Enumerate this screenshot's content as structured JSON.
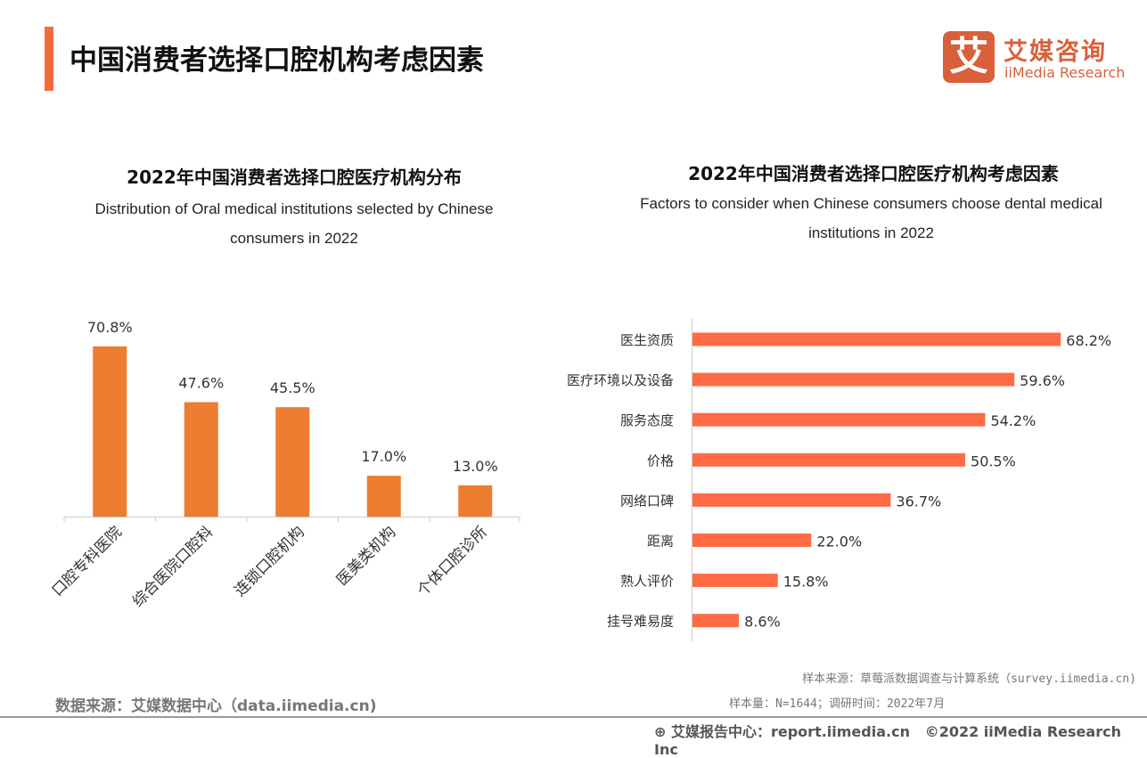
{
  "header": {
    "title": "中国消费者选择口腔机构考虑因素",
    "logo_cn": "艾媒咨询",
    "logo_en": "iiMedia Research",
    "logo_glyph": "艾"
  },
  "chart_data": [
    {
      "type": "bar",
      "title": "2022年中国消费者选择口腔医疗机构分布",
      "subtitle": "Distribution of Oral medical institutions selected by Chinese consumers in 2022",
      "categories": [
        "口腔专科医院",
        "综合医院口腔科",
        "连锁口腔机构",
        "医美类机构",
        "个体口腔诊所"
      ],
      "values": [
        70.8,
        47.6,
        45.5,
        17.0,
        13.0
      ],
      "labels": [
        "70.8%",
        "47.6%",
        "45.5%",
        "17.0%",
        "13.0%"
      ],
      "color": "#ED7D31",
      "grid": false
    },
    {
      "type": "bar",
      "orientation": "horizontal",
      "title": "2022年中国消费者选择口腔医疗机构考虑因素",
      "subtitle": "Factors to consider when Chinese consumers choose dental medical institutions in 2022",
      "categories": [
        "医生资质",
        "医疗环境以及设备",
        "服务态度",
        "价格",
        "网络口碑",
        "距离",
        "熟人评价",
        "挂号难易度"
      ],
      "values": [
        68.2,
        59.6,
        54.2,
        50.5,
        36.7,
        22.0,
        15.8,
        8.6
      ],
      "labels": [
        "68.2%",
        "59.6%",
        "54.2%",
        "50.5%",
        "36.7%",
        "22.0%",
        "15.8%",
        "8.6%"
      ],
      "color": "#FF6B45",
      "grid": false
    }
  ],
  "footer": {
    "source_left": "数据来源：艾媒数据中心（data.iimedia.cn)",
    "sample_source": "样本来源：草莓派数据调查与计算系统（survey.iimedia.cn)",
    "sample_size": "样本量：N=1644；调研时间：2022年7月",
    "report": "艾媒报告中心：report.iimedia.cn",
    "copyright": "©2022  iiMedia Research  Inc"
  }
}
